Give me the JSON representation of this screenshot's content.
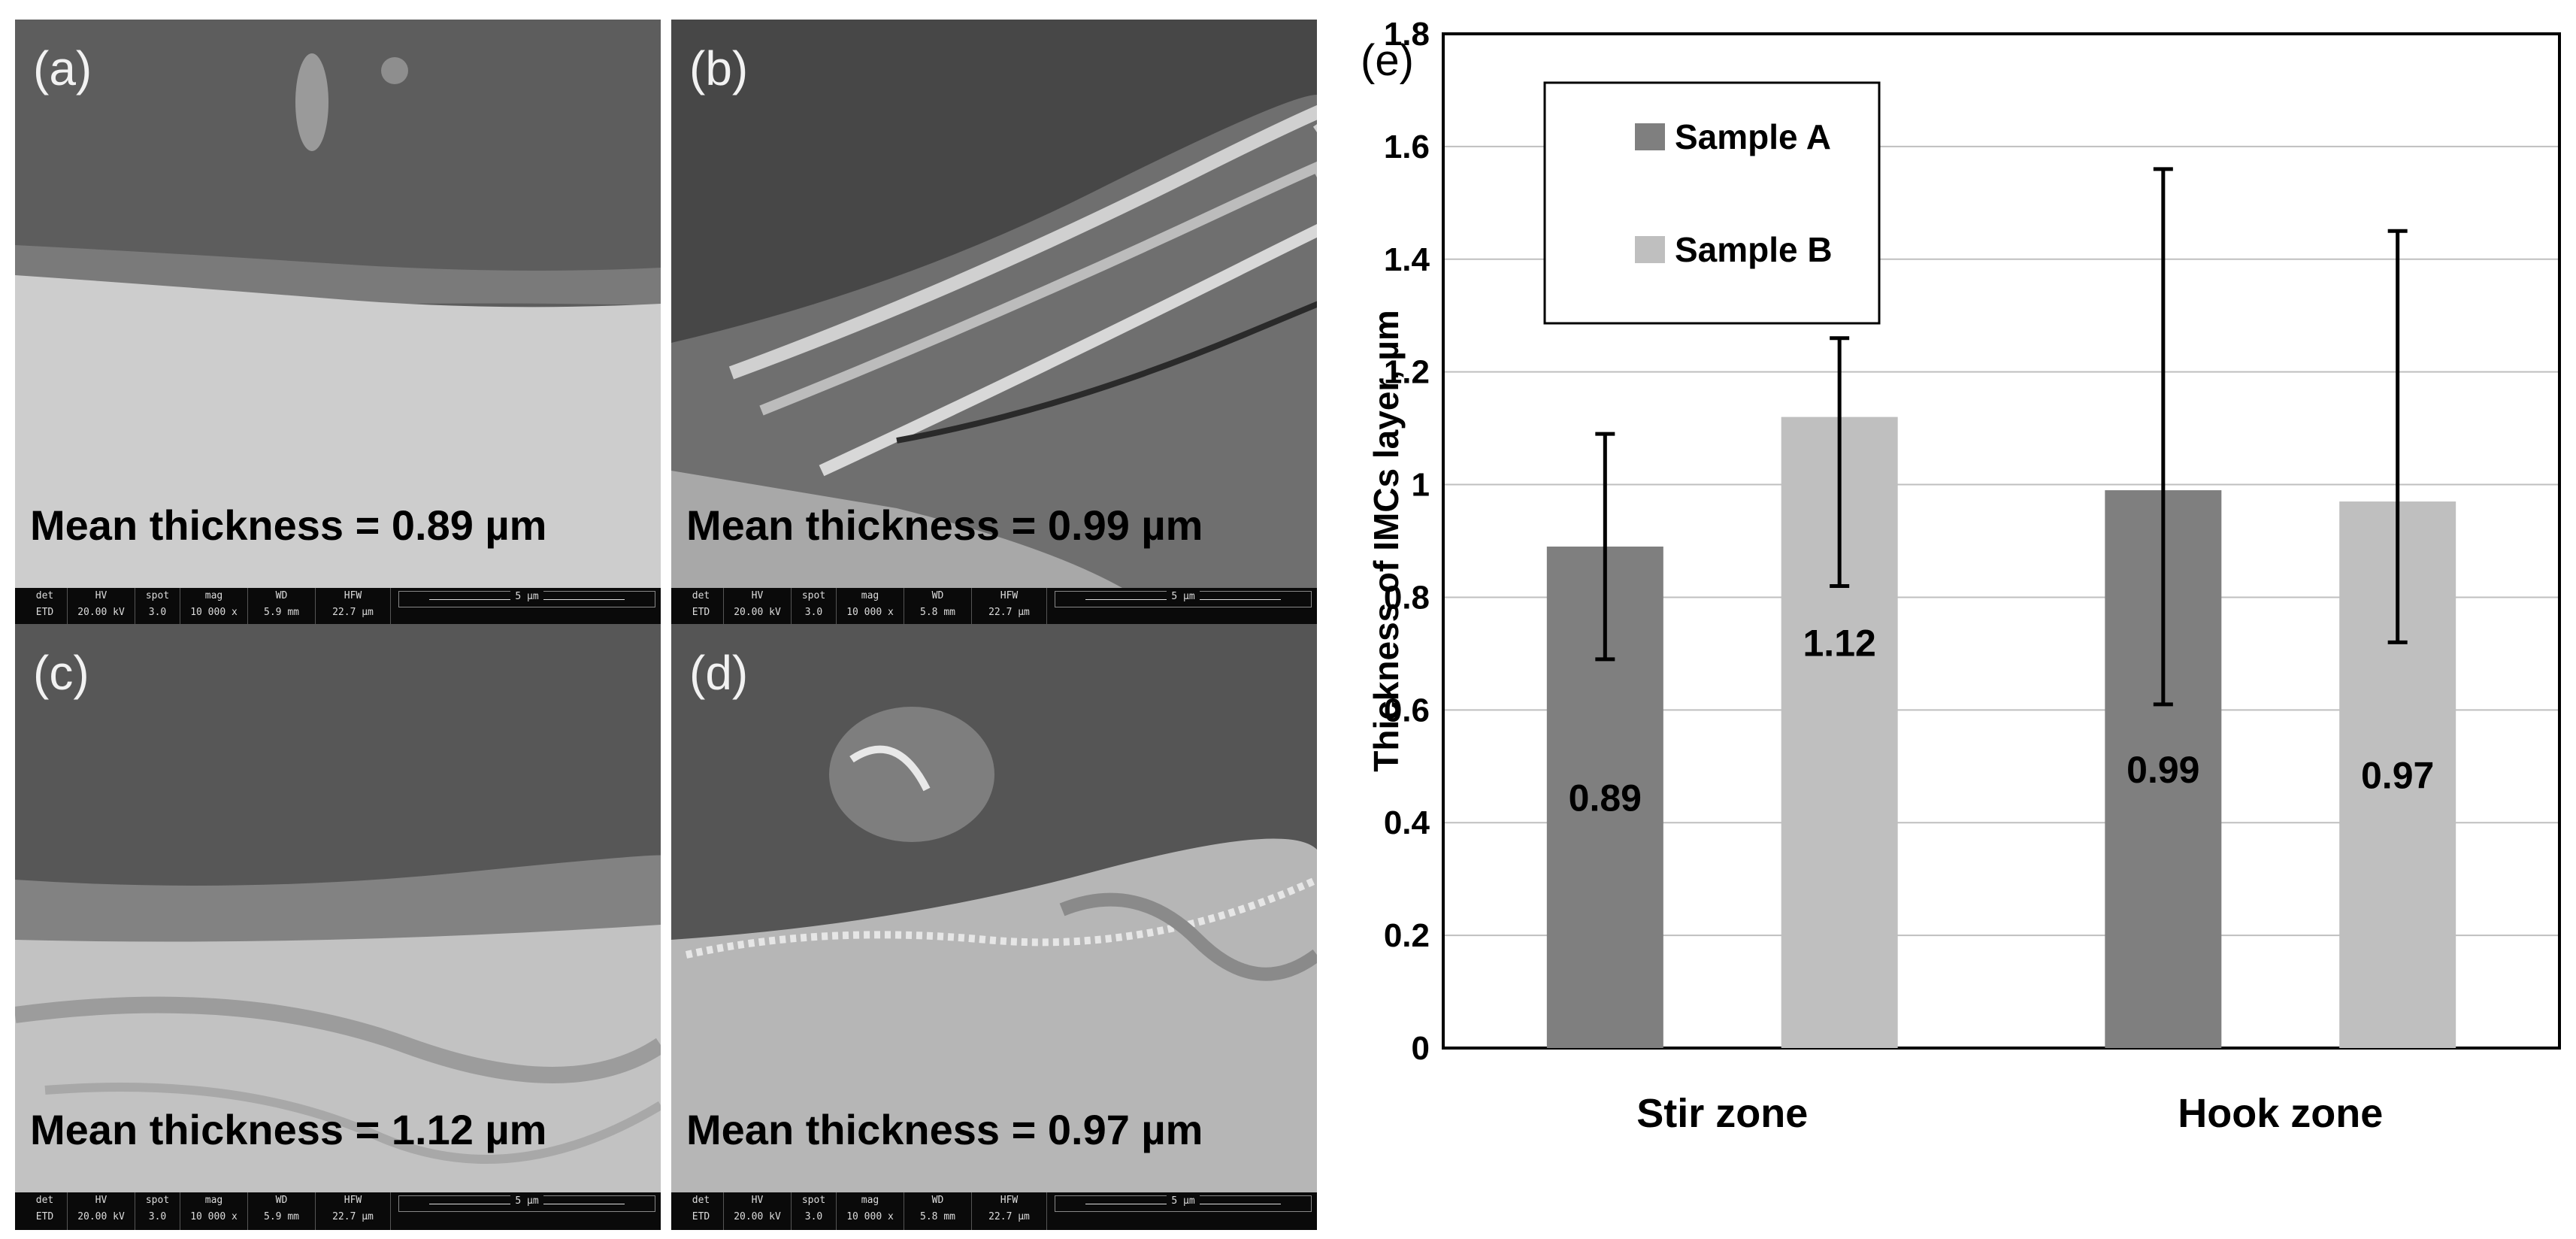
{
  "sem_panels": [
    {
      "letter": "(a)",
      "mean_text": "Mean thickness = 0.89 µm",
      "databar": {
        "det": "ETD",
        "hv": "20.00 kV",
        "spot": "3.0",
        "mag": "10 000 x",
        "wd": "5.9 mm",
        "hfw": "22.7 µm",
        "scale": "5 µm"
      }
    },
    {
      "letter": "(b)",
      "mean_text": "Mean thickness = 0.99 µm",
      "databar": {
        "det": "ETD",
        "hv": "20.00 kV",
        "spot": "3.0",
        "mag": "10 000 x",
        "wd": "5.8 mm",
        "hfw": "22.7 µm",
        "scale": "5 µm"
      }
    },
    {
      "letter": "(c)",
      "mean_text": "Mean thickness = 1.12 µm",
      "databar": {
        "det": "ETD",
        "hv": "20.00 kV",
        "spot": "3.0",
        "mag": "10 000 x",
        "wd": "5.9 mm",
        "hfw": "22.7 µm",
        "scale": "5 µm"
      }
    },
    {
      "letter": "(d)",
      "mean_text": "Mean thickness = 0.97 µm",
      "databar": {
        "det": "ETD",
        "hv": "20.00 kV",
        "spot": "3.0",
        "mag": "10 000 x",
        "wd": "5.8 mm",
        "hfw": "22.7 µm",
        "scale": "5 µm"
      }
    }
  ],
  "databar_headers": {
    "det": "det",
    "hv": "HV",
    "spot": "spot",
    "mag": "mag",
    "wd": "WD",
    "hfw": "HFW"
  },
  "chart_data": {
    "type": "bar",
    "panel_label": "(e)",
    "title": "",
    "xlabel": "",
    "ylabel": "Thickness of IMCs layer, µm",
    "categories": [
      "Stir zone",
      "Hook zone"
    ],
    "series": [
      {
        "name": "Sample A",
        "color": "#7f7f7f",
        "values": [
          0.89,
          0.99
        ],
        "err_low": [
          0.69,
          0.61
        ],
        "err_high": [
          1.09,
          1.56
        ]
      },
      {
        "name": "Sample B",
        "color": "#bfbfbf",
        "values": [
          1.12,
          0.97
        ],
        "err_low": [
          0.82,
          0.72
        ],
        "err_high": [
          1.26,
          1.45
        ]
      }
    ],
    "data_labels": [
      "0.89",
      "1.12",
      "0.99",
      "0.97"
    ],
    "ylim": [
      0,
      1.8
    ],
    "yticks": [
      "0",
      "0.2",
      "0.4",
      "0.6",
      "0.8",
      "1",
      "1.2",
      "1.4",
      "1.6",
      "1.8"
    ],
    "grid": true,
    "legend_position": "top-left"
  }
}
